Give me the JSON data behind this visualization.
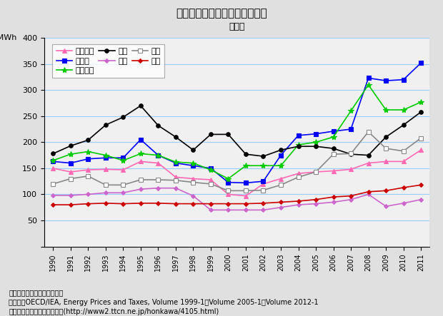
{
  "title": "（図表２）電気料金の国際比較",
  "label_right": "家庭用",
  "years": [
    1990,
    1991,
    1992,
    1993,
    1994,
    1995,
    1996,
    1997,
    1998,
    1999,
    2000,
    2001,
    2002,
    2003,
    2004,
    2005,
    2006,
    2007,
    2008,
    2009,
    2010,
    2011
  ],
  "series": {
    "フランス": {
      "color": "#ff69b4",
      "marker": "^",
      "markerfacecolor": "#ff69b4",
      "markeredgecolor": "#ff69b4",
      "values": [
        150,
        143,
        147,
        148,
        147,
        163,
        160,
        133,
        130,
        128,
        100,
        97,
        120,
        130,
        140,
        143,
        145,
        148,
        160,
        163,
        163,
        185
      ]
    },
    "ドイツ": {
      "color": "#0000ff",
      "marker": "s",
      "markerfacecolor": "#0000ff",
      "markeredgecolor": "#0000ff",
      "values": [
        163,
        160,
        168,
        170,
        170,
        205,
        175,
        160,
        155,
        150,
        123,
        122,
        125,
        175,
        213,
        216,
        221,
        225,
        323,
        318,
        320,
        352
      ]
    },
    "イタリア": {
      "color": "#00cc00",
      "marker": "*",
      "markerfacecolor": "#00cc00",
      "markeredgecolor": "#00cc00",
      "values": [
        165,
        177,
        182,
        175,
        165,
        178,
        175,
        162,
        160,
        147,
        130,
        155,
        155,
        155,
        195,
        200,
        210,
        260,
        310,
        262,
        262,
        277
      ]
    },
    "日本": {
      "color": "#000000",
      "marker": "o",
      "markerfacecolor": "#000000",
      "markeredgecolor": "#000000",
      "values": [
        178,
        193,
        204,
        233,
        248,
        270,
        232,
        210,
        185,
        215,
        215,
        177,
        173,
        185,
        192,
        192,
        188,
        177,
        175,
        210,
        233,
        258
      ]
    },
    "韓国": {
      "color": "#cc66cc",
      "marker": "D",
      "markerfacecolor": "#cc66cc",
      "markeredgecolor": "#cc66cc",
      "values": [
        98,
        98,
        100,
        103,
        103,
        110,
        112,
        112,
        97,
        70,
        70,
        70,
        70,
        75,
        80,
        82,
        85,
        90,
        100,
        77,
        83,
        90
      ]
    },
    "英国": {
      "color": "#888888",
      "marker": "s",
      "markerfacecolor": "#ffffff",
      "markeredgecolor": "#888888",
      "values": [
        120,
        130,
        135,
        118,
        118,
        128,
        128,
        127,
        123,
        120,
        107,
        107,
        108,
        118,
        133,
        143,
        177,
        178,
        220,
        188,
        183,
        208
      ]
    },
    "米国": {
      "color": "#cc0000",
      "marker": "D",
      "markerfacecolor": "#cc0000",
      "markeredgecolor": "#cc0000",
      "values": [
        80,
        80,
        82,
        83,
        82,
        83,
        83,
        82,
        82,
        82,
        82,
        82,
        83,
        85,
        87,
        90,
        95,
        97,
        105,
        107,
        113,
        118
      ]
    }
  },
  "series_order": [
    "フランス",
    "ドイツ",
    "イタリア",
    "日本",
    "韓国",
    "英国",
    "米国"
  ],
  "xlim": [
    1989.5,
    2011.5
  ],
  "ylim": [
    0,
    400
  ],
  "yticks": [
    0,
    50,
    100,
    150,
    200,
    250,
    300,
    350,
    400
  ],
  "grid_color": "#99ccff",
  "plot_bg_color": "#f0f0f0",
  "fig_bg_color": "#e0e0e0",
  "note1": "（注）米国は課税前の価格。",
  "note2": "（資料）OECD/IEA, Energy Prices and Taxes, Volume 1999-1／Volume 2005-1／Volume 2012-1",
  "note3": "（出所）社会実情データ図録(http://www2.ttcn.ne.jp/honkawa/4105.html)"
}
